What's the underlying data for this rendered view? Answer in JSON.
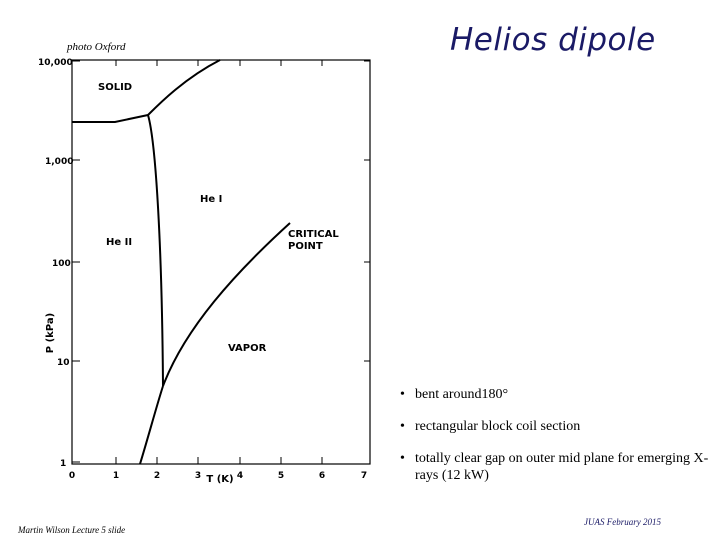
{
  "title": "Helios dipole",
  "photo_credit": "photo Oxford",
  "bullets": [
    "bent around180°",
    "rectangular block coil section",
    "totally clear gap on outer mid plane for emerging X-rays (12 kW)"
  ],
  "footer_left": "Martin Wilson Lecture 5 slide",
  "footer_right": "JUAS February 2015",
  "diagram": {
    "y_tick_labels": [
      "10,000",
      "1,000",
      "100",
      "10",
      "1"
    ],
    "x_tick_labels": [
      "0",
      "1",
      "2",
      "3",
      "4",
      "5",
      "6",
      "7"
    ],
    "x_axis_label": "T (K)",
    "y_axis_label": "P (kPa)",
    "regions": {
      "solid": "SOLID",
      "he1": "He I",
      "he2": "He II",
      "vapor": "VAPOR",
      "critical": "CRITICAL",
      "point": "POINT"
    }
  }
}
